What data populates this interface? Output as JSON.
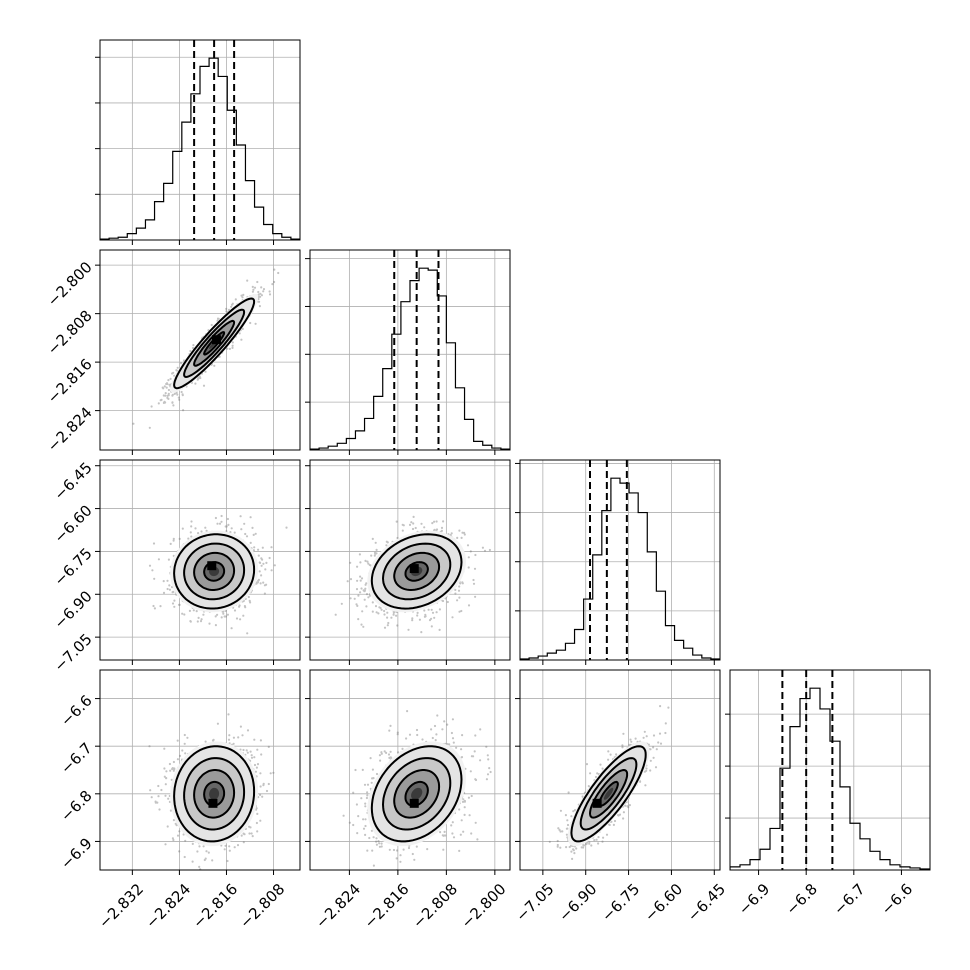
{
  "chart_data": {
    "type": "corner",
    "dimension": 4,
    "grid": true,
    "params": [
      {
        "range": [
          -2.8375,
          -2.8035
        ],
        "ticks": [
          -2.832,
          -2.824,
          -2.816,
          -2.808
        ],
        "tick_labels": [
          "−2.832",
          "−2.824",
          "−2.816",
          "−2.808"
        ],
        "quantiles": [
          -2.8215,
          -2.8181,
          -2.8147
        ],
        "hist": [
          1,
          2,
          3,
          7,
          13,
          22,
          42,
          62,
          97,
          129,
          160,
          190,
          199,
          179,
          142,
          104,
          65,
          36,
          17,
          7,
          3,
          1
        ]
      },
      {
        "range": [
          -2.8305,
          -2.7975
        ],
        "ticks": [
          -2.824,
          -2.816,
          -2.808,
          -2.8
        ],
        "tick_labels": [
          "−2.824",
          "−2.816",
          "−2.808",
          "−2.800"
        ],
        "quantiles": [
          -2.8166,
          -2.8129,
          -2.8093
        ],
        "hist": [
          1,
          2,
          4,
          7,
          12,
          20,
          33,
          56,
          85,
          121,
          155,
          177,
          190,
          188,
          161,
          112,
          65,
          32,
          9,
          5,
          2,
          1
        ]
      },
      {
        "range": [
          -7.13,
          -6.43
        ],
        "ticks": [
          -7.05,
          -6.9,
          -6.75,
          -6.6,
          -6.45
        ],
        "tick_labels": [
          "−7.05",
          "−6.90",
          "−6.75",
          "−6.60",
          "−6.45"
        ],
        "quantiles": [
          -6.885,
          -6.826,
          -6.756
        ],
        "hist": [
          1,
          2,
          4,
          7,
          10,
          17,
          31,
          62,
          107,
          152,
          185,
          180,
          170,
          150,
          110,
          70,
          35,
          20,
          12,
          5,
          2,
          1
        ]
      },
      {
        "range": [
          -6.96,
          -6.54
        ],
        "ticks": [
          -6.9,
          -6.8,
          -6.7,
          -6.6
        ],
        "tick_labels": [
          "−6.9",
          "−6.8",
          "−6.7",
          "−6.6"
        ],
        "quantiles": [
          -6.85,
          -6.8,
          -6.745
        ],
        "hist": [
          3,
          5,
          10,
          20,
          40,
          98,
          138,
          165,
          175,
          155,
          124,
          80,
          45,
          30,
          18,
          10,
          5,
          3,
          2,
          1
        ]
      }
    ],
    "pairs": [
      {
        "row": 1,
        "col": 0,
        "center": [
          -2.8181,
          -2.8129
        ],
        "sd": [
          0.0034,
          0.0037
        ],
        "rho": 0.93,
        "peak": [
          -2.8177,
          -2.8123
        ]
      },
      {
        "row": 2,
        "col": 0,
        "center": [
          -2.8181,
          -6.82
        ],
        "sd": [
          0.0034,
          0.065
        ],
        "rho": 0.05,
        "peak": [
          -2.8185,
          -6.8
        ]
      },
      {
        "row": 2,
        "col": 1,
        "center": [
          -2.8129,
          -6.82
        ],
        "sd": [
          0.0037,
          0.065
        ],
        "rho": 0.25,
        "peak": [
          -2.8133,
          -6.81
        ]
      },
      {
        "row": 3,
        "col": 0,
        "center": [
          -2.8181,
          -6.8
        ],
        "sd": [
          0.0034,
          0.05
        ],
        "rho": 0.05,
        "peak": [
          -2.8183,
          -6.82
        ]
      },
      {
        "row": 3,
        "col": 1,
        "center": [
          -2.8129,
          -6.8
        ],
        "sd": [
          0.0037,
          0.05
        ],
        "rho": 0.3,
        "peak": [
          -2.8133,
          -6.82
        ]
      },
      {
        "row": 3,
        "col": 2,
        "center": [
          -6.82,
          -6.8
        ],
        "sd": [
          0.065,
          0.05
        ],
        "rho": 0.82,
        "peak": [
          -6.86,
          -6.82
        ]
      }
    ],
    "contour_levels_sigma": [
      0.5,
      1.0,
      1.5,
      2.0
    ]
  },
  "colors": {
    "ink": "#000000",
    "grid": "#b0b0b0",
    "background": "#ffffff"
  }
}
